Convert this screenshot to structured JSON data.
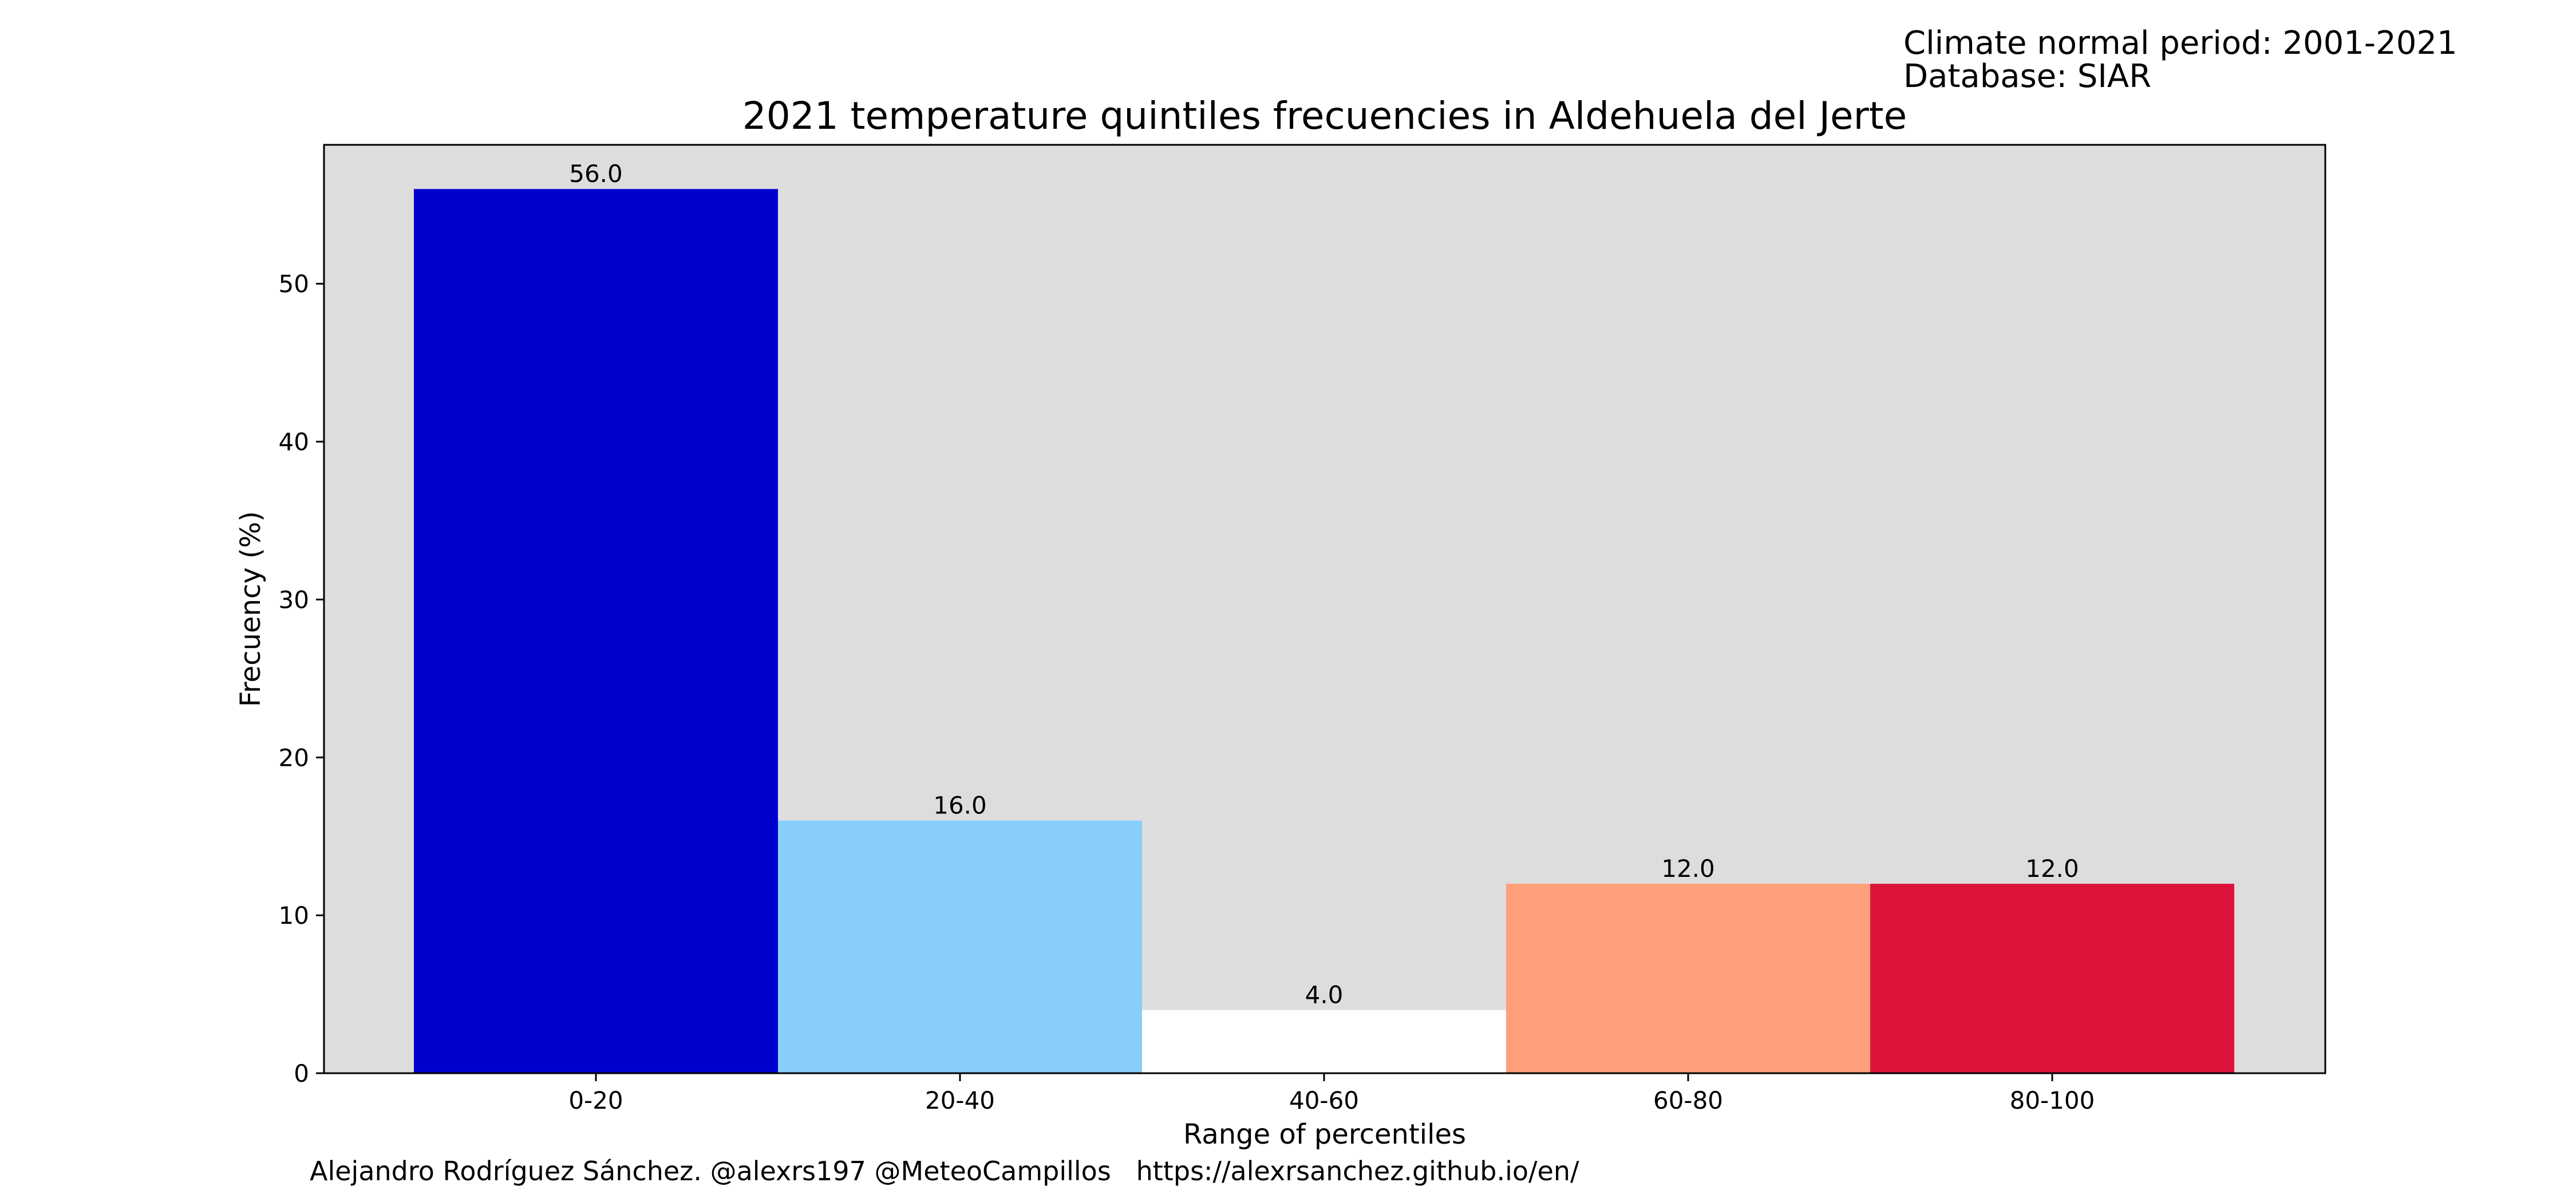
{
  "header": {
    "period": "Climate normal period: 2001-2021",
    "database": "Database: SIAR"
  },
  "footer": {
    "credit": "Alejandro Rodríguez Sánchez. @alexrs197 @MeteoCampillos   https://alexrsanchez.github.io/en/"
  },
  "chart_data": {
    "type": "bar",
    "title": "2021 temperature quintiles frecuencies in Aldehuela   del   Jerte",
    "xlabel": "Range of percentiles",
    "ylabel": "Frecuency (%)",
    "categories": [
      "0-20",
      "20-40",
      "40-60",
      "60-80",
      "80-100"
    ],
    "values": [
      56.0,
      16.0,
      4.0,
      12.0,
      12.0
    ],
    "value_labels": [
      "56.0",
      "16.0",
      "4.0",
      "12.0",
      "12.0"
    ],
    "colors": [
      "#0000cd",
      "#87cefa",
      "#ffffff",
      "#ffa07a",
      "#dc143c"
    ],
    "yticks": [
      0,
      10,
      20,
      30,
      40,
      50
    ],
    "ylim": [
      0,
      58.8
    ],
    "plot_background": "#dddddd",
    "grid": false,
    "legend": "none"
  }
}
